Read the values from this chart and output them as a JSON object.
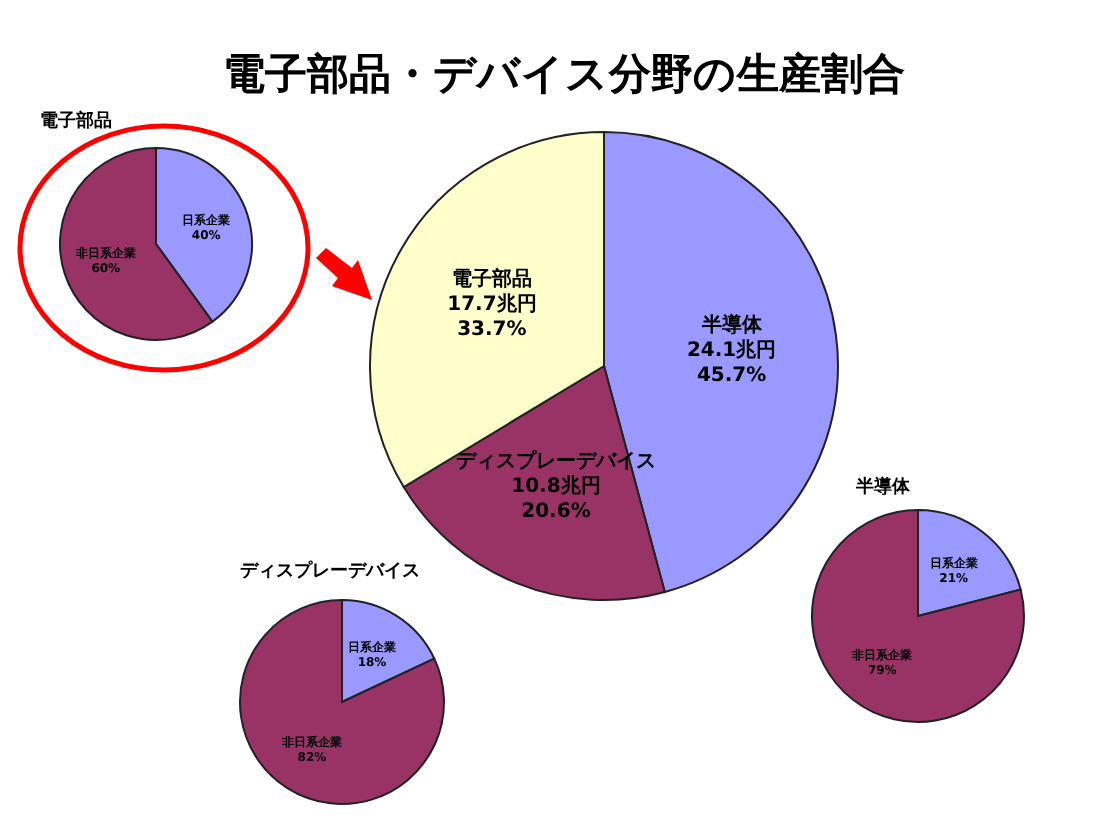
{
  "chart_data": [
    {
      "type": "pie",
      "title": "電子部品",
      "categories": [
        "日系企業",
        "非日系企業"
      ],
      "values": [
        40,
        60
      ],
      "colors": [
        "#9999ff",
        "#993366"
      ],
      "value_labels": [
        "40%",
        "60%"
      ]
    },
    {
      "type": "pie",
      "title": "電子部品・デバイス分野の生産割合",
      "categories": [
        "半導体",
        "ディスプレーデバイス",
        "電子部品"
      ],
      "values": [
        24.1,
        10.8,
        17.7
      ],
      "colors": [
        "#9999ff",
        "#993366",
        "#ffffcc"
      ],
      "value_labels": [
        "24.1兆円\n45.7%",
        "10.8兆円\n20.6%",
        "17.7兆円\n33.7%"
      ]
    },
    {
      "type": "pie",
      "title": "半導体",
      "categories": [
        "日系企業",
        "非日系企業"
      ],
      "values": [
        21,
        79
      ],
      "colors": [
        "#9999ff",
        "#993366"
      ],
      "value_labels": [
        "21%",
        "79%"
      ]
    },
    {
      "type": "pie",
      "title": "ディスプレーデバイス",
      "categories": [
        "日系企業",
        "非日系企業"
      ],
      "values": [
        18,
        82
      ],
      "colors": [
        "#9999ff",
        "#993366"
      ],
      "value_labels": [
        "18%",
        "82%"
      ]
    }
  ]
}
